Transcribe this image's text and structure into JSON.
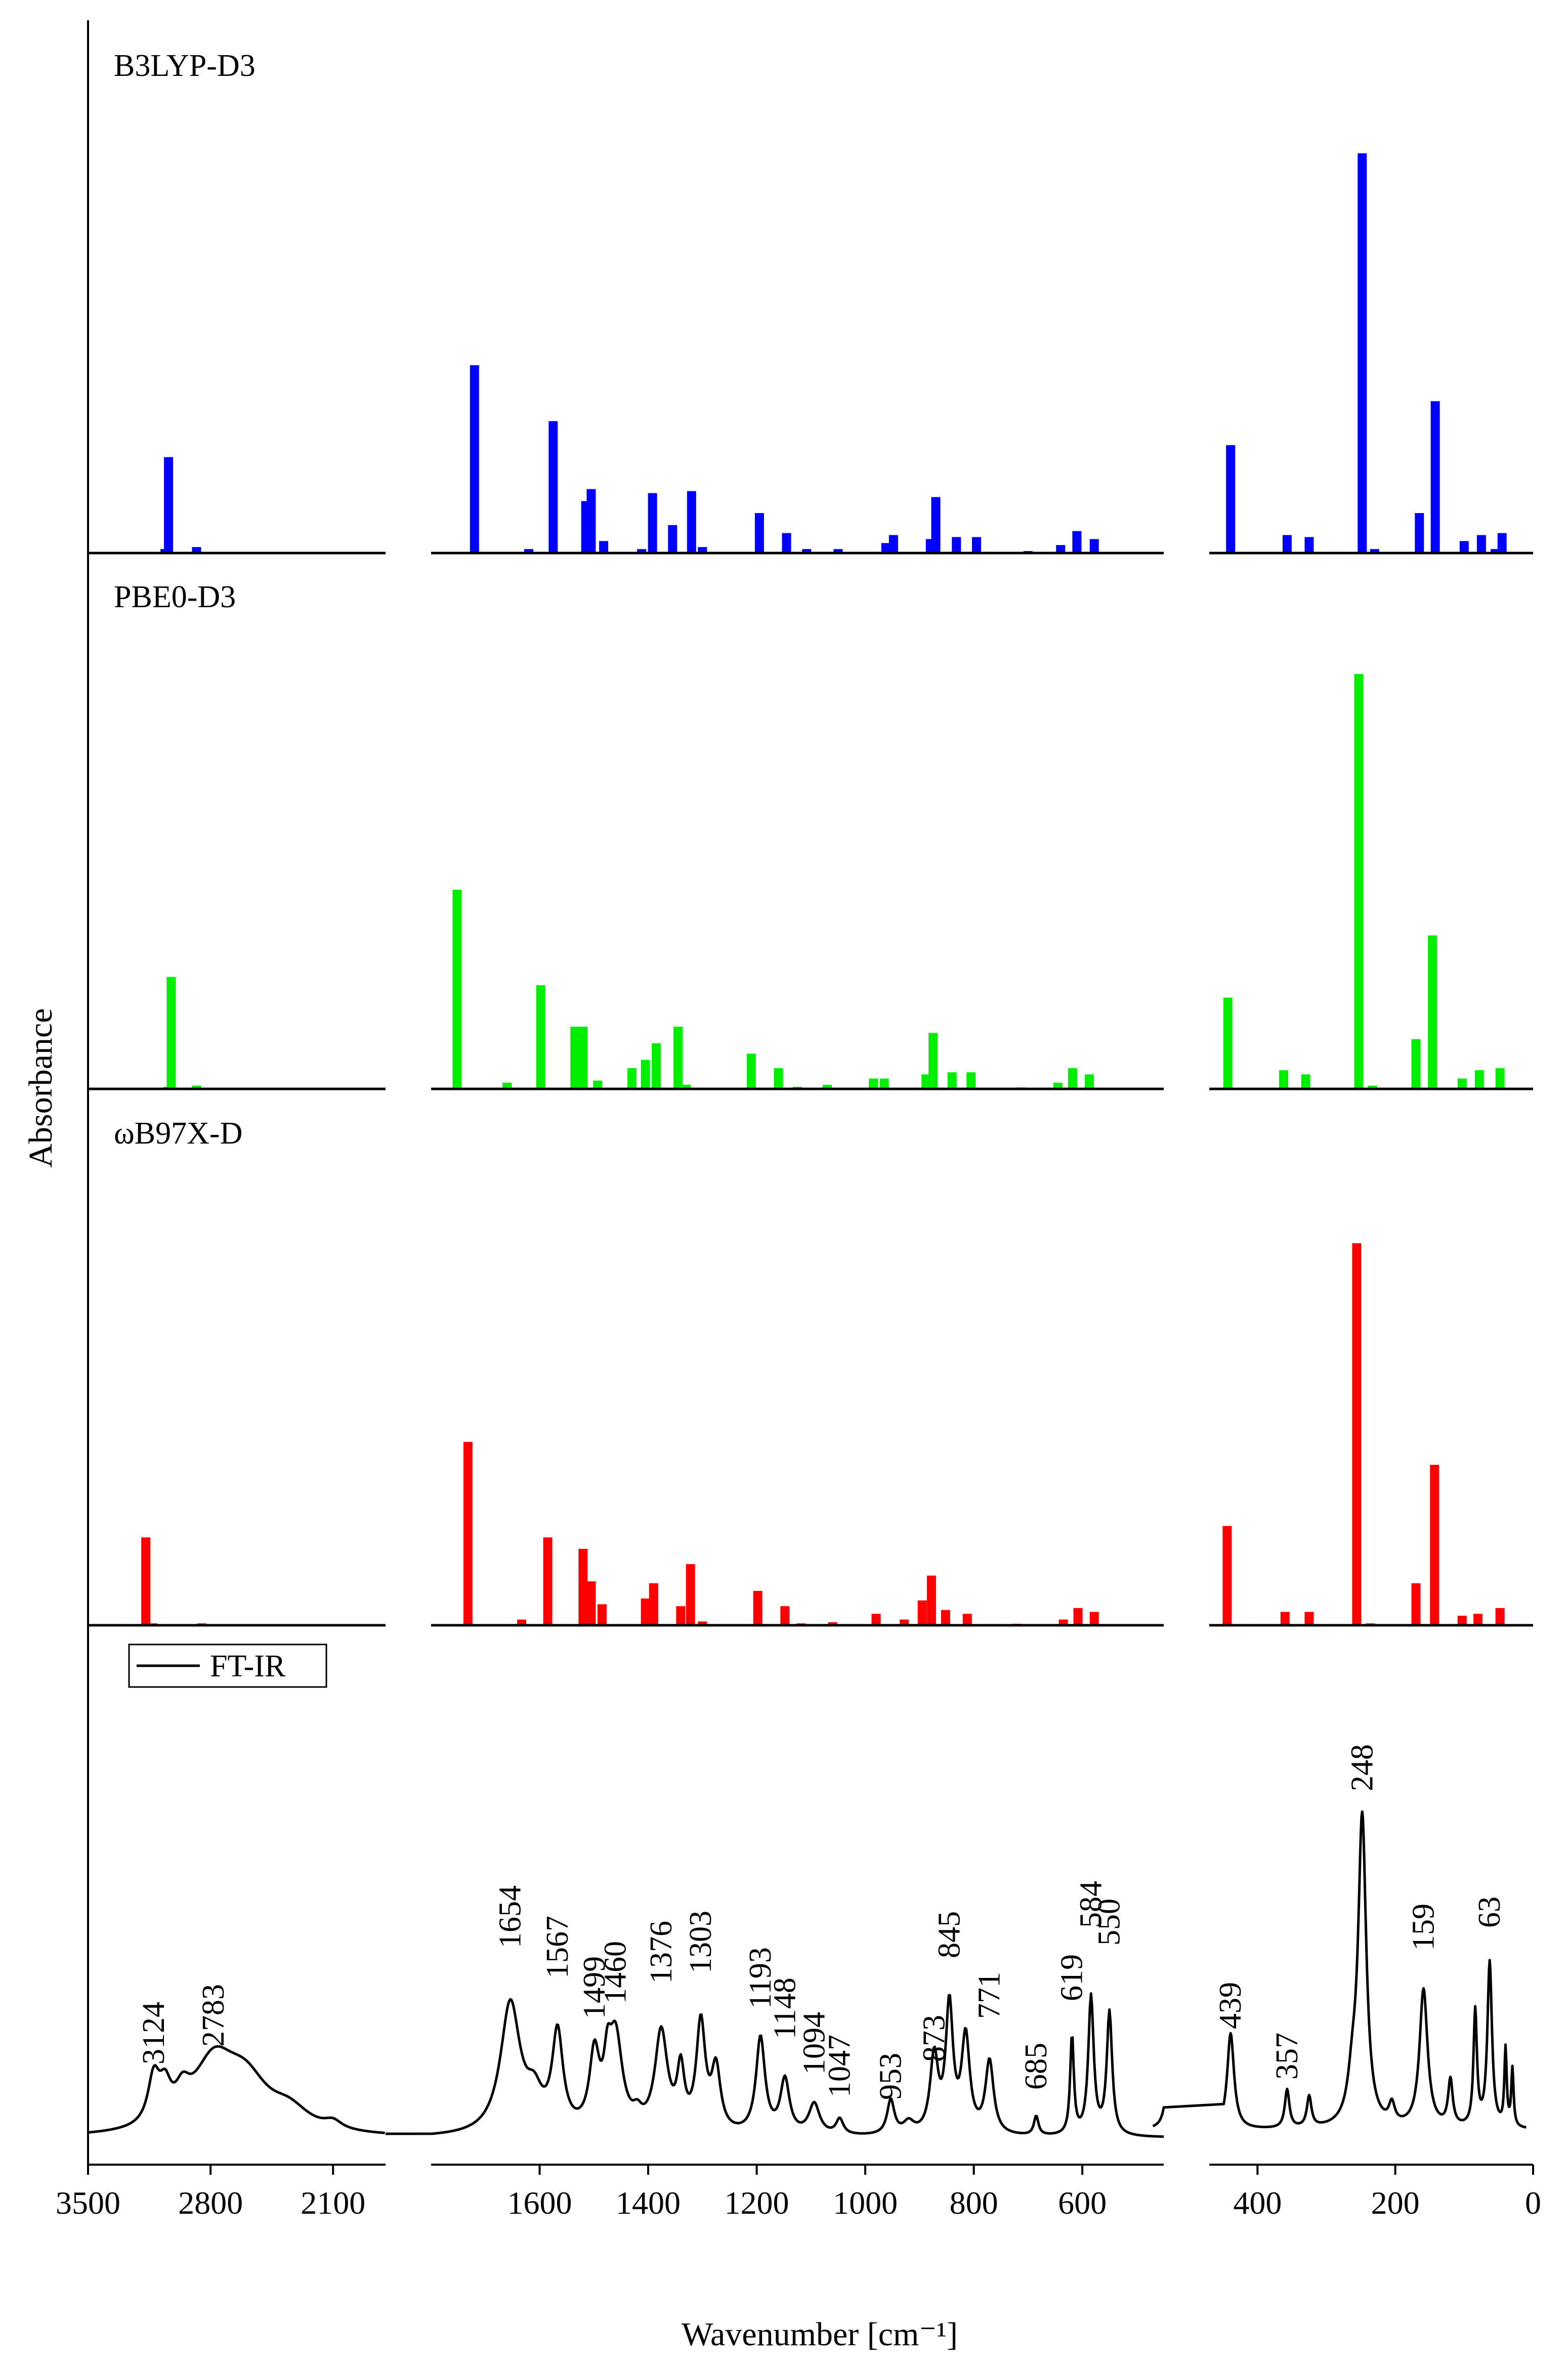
{
  "chart_data": {
    "type": "bar+line",
    "ylabel": "Absorbance",
    "xlabel": "Wavenumber [cm⁻¹]",
    "x_axis": {
      "segments": [
        {
          "xlim": [
            3500,
            1800
          ],
          "ticks": [
            3500,
            2800,
            2100
          ]
        },
        {
          "xlim": [
            1800,
            450
          ],
          "ticks": [
            1600,
            1400,
            1200,
            1000,
            800,
            600
          ]
        },
        {
          "xlim": [
            470,
            0
          ],
          "ticks": [
            400,
            200,
            0
          ]
        }
      ]
    },
    "series": [
      {
        "name": "B3LYP-D3",
        "color": "#0000ff",
        "ymax": 1.0,
        "peaks": [
          [
            3040,
            0.24
          ],
          [
            3060,
            0.01
          ],
          [
            2880,
            0.015
          ],
          [
            1720,
            0.47
          ],
          [
            1620,
            0.01
          ],
          [
            1575,
            0.33
          ],
          [
            1515,
            0.13
          ],
          [
            1505,
            0.16
          ],
          [
            1482,
            0.03
          ],
          [
            1412,
            0.01
          ],
          [
            1392,
            0.15
          ],
          [
            1355,
            0.07
          ],
          [
            1320,
            0.155
          ],
          [
            1300,
            0.015
          ],
          [
            1195,
            0.1
          ],
          [
            1145,
            0.05
          ],
          [
            1108,
            0.01
          ],
          [
            1050,
            0.01
          ],
          [
            962,
            0.025
          ],
          [
            948,
            0.045
          ],
          [
            880,
            0.035
          ],
          [
            870,
            0.14
          ],
          [
            832,
            0.04
          ],
          [
            795,
            0.04
          ],
          [
            700,
            0.005
          ],
          [
            640,
            0.02
          ],
          [
            610,
            0.055
          ],
          [
            578,
            0.035
          ],
          [
            439,
            0.27
          ],
          [
            357,
            0.045
          ],
          [
            325,
            0.04
          ],
          [
            248,
            1.0
          ],
          [
            230,
            0.01
          ],
          [
            165,
            0.1
          ],
          [
            142,
            0.38
          ],
          [
            100,
            0.03
          ],
          [
            75,
            0.045
          ],
          [
            55,
            0.01
          ],
          [
            45,
            0.05
          ]
        ]
      },
      {
        "name": "PBE0-D3",
        "color": "#00ee00",
        "ymax": 1.0,
        "peaks": [
          [
            3025,
            0.27
          ],
          [
            3045,
            0.005
          ],
          [
            2880,
            0.008
          ],
          [
            1752,
            0.48
          ],
          [
            1660,
            0.015
          ],
          [
            1598,
            0.25
          ],
          [
            1535,
            0.15
          ],
          [
            1520,
            0.15
          ],
          [
            1493,
            0.02
          ],
          [
            1430,
            0.05
          ],
          [
            1405,
            0.07
          ],
          [
            1385,
            0.11
          ],
          [
            1345,
            0.15
          ],
          [
            1330,
            0.01
          ],
          [
            1210,
            0.085
          ],
          [
            1160,
            0.05
          ],
          [
            1125,
            0.005
          ],
          [
            1070,
            0.01
          ],
          [
            985,
            0.025
          ],
          [
            965,
            0.025
          ],
          [
            888,
            0.035
          ],
          [
            875,
            0.135
          ],
          [
            840,
            0.04
          ],
          [
            805,
            0.04
          ],
          [
            713,
            0.003
          ],
          [
            645,
            0.015
          ],
          [
            618,
            0.05
          ],
          [
            587,
            0.035
          ],
          [
            443,
            0.22
          ],
          [
            362,
            0.045
          ],
          [
            330,
            0.035
          ],
          [
            253,
            1.0
          ],
          [
            233,
            0.008
          ],
          [
            170,
            0.12
          ],
          [
            146,
            0.37
          ],
          [
            103,
            0.025
          ],
          [
            78,
            0.045
          ],
          [
            48,
            0.05
          ]
        ]
      },
      {
        "name": "ωB97X-D",
        "color": "#ff0000",
        "ymax": 1.0,
        "peaks": [
          [
            3170,
            0.23
          ],
          [
            3130,
            0.005
          ],
          [
            2850,
            0.005
          ],
          [
            1732,
            0.48
          ],
          [
            1633,
            0.015
          ],
          [
            1585,
            0.23
          ],
          [
            1520,
            0.2
          ],
          [
            1505,
            0.115
          ],
          [
            1485,
            0.055
          ],
          [
            1405,
            0.07
          ],
          [
            1390,
            0.11
          ],
          [
            1340,
            0.05
          ],
          [
            1322,
            0.16
          ],
          [
            1300,
            0.01
          ],
          [
            1198,
            0.09
          ],
          [
            1148,
            0.05
          ],
          [
            1118,
            0.005
          ],
          [
            1060,
            0.008
          ],
          [
            980,
            0.03
          ],
          [
            928,
            0.015
          ],
          [
            895,
            0.065
          ],
          [
            878,
            0.13
          ],
          [
            852,
            0.04
          ],
          [
            812,
            0.03
          ],
          [
            720,
            0.003
          ],
          [
            635,
            0.015
          ],
          [
            608,
            0.045
          ],
          [
            578,
            0.035
          ],
          [
            444,
            0.26
          ],
          [
            360,
            0.035
          ],
          [
            325,
            0.035
          ],
          [
            256,
            1.0
          ],
          [
            236,
            0.005
          ],
          [
            170,
            0.11
          ],
          [
            143,
            0.42
          ],
          [
            103,
            0.025
          ],
          [
            80,
            0.03
          ],
          [
            48,
            0.045
          ]
        ]
      },
      {
        "name": "FT-IR",
        "color": "#000000",
        "type": "line",
        "peak_labels": [
          3124,
          2783,
          1654,
          1567,
          1499,
          1460,
          1376,
          1303,
          1193,
          1148,
          1094,
          1047,
          953,
          873,
          845,
          771,
          685,
          619,
          584,
          550,
          439,
          357,
          248,
          159,
          63
        ]
      }
    ],
    "legend": {
      "entries": [
        "FT-IR"
      ],
      "placement": "top-left of bottom panel"
    },
    "grid": false
  }
}
